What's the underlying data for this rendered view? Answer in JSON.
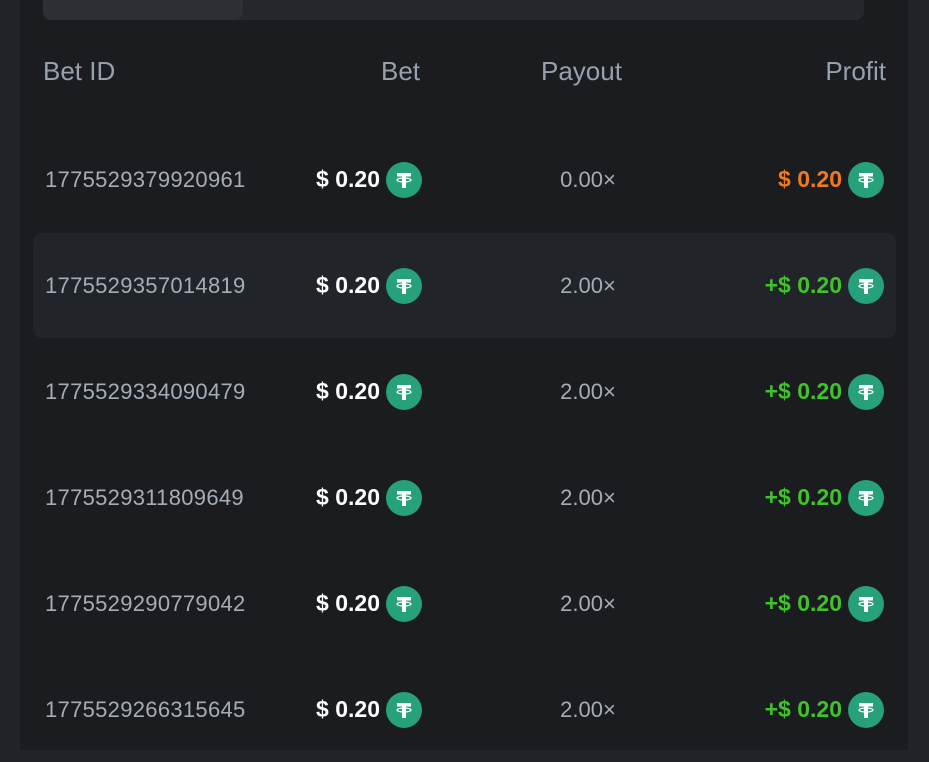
{
  "tabs": {
    "active_index": 0
  },
  "table": {
    "headers": {
      "bet_id": "Bet ID",
      "bet": "Bet",
      "payout": "Payout",
      "profit": "Profit"
    },
    "currency_icon": "tether-usdt-icon",
    "colors": {
      "loss": "#f07a1c",
      "win": "#3fc22a",
      "coin": "#26a17b"
    },
    "rows": [
      {
        "id": "1775529379920961",
        "bet": "$ 0.20",
        "payout": "0.00×",
        "profit": "$ 0.20",
        "result": "loss"
      },
      {
        "id": "1775529357014819",
        "bet": "$ 0.20",
        "payout": "2.00×",
        "profit": "+$ 0.20",
        "result": "win"
      },
      {
        "id": "1775529334090479",
        "bet": "$ 0.20",
        "payout": "2.00×",
        "profit": "+$ 0.20",
        "result": "win"
      },
      {
        "id": "1775529311809649",
        "bet": "$ 0.20",
        "payout": "2.00×",
        "profit": "+$ 0.20",
        "result": "win"
      },
      {
        "id": "1775529290779042",
        "bet": "$ 0.20",
        "payout": "2.00×",
        "profit": "+$ 0.20",
        "result": "win"
      },
      {
        "id": "1775529266315645",
        "bet": "$ 0.20",
        "payout": "2.00×",
        "profit": "+$ 0.20",
        "result": "win"
      }
    ]
  }
}
